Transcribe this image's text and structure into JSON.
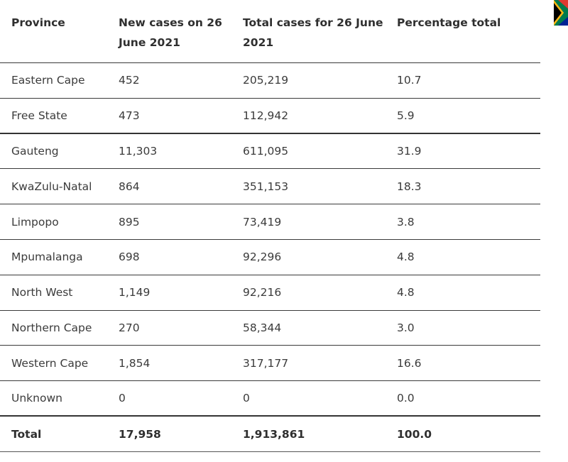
{
  "table": {
    "headers": [
      "Province",
      "New cases on 26 June 2021",
      "Total cases for 26 June 2021",
      "Percentage total"
    ],
    "rows": [
      [
        "Eastern Cape",
        "452",
        "205,219",
        "10.7"
      ],
      [
        "Free State",
        "473",
        "112,942",
        "5.9"
      ],
      [
        "Gauteng",
        "11,303",
        "611,095",
        "31.9"
      ],
      [
        "KwaZulu-Natal",
        "864",
        "351,153",
        "18.3"
      ],
      [
        "Limpopo",
        "895",
        "73,419",
        "3.8"
      ],
      [
        "Mpumalanga",
        "698",
        "92,296",
        "4.8"
      ],
      [
        "North West",
        "1,149",
        "92,216",
        "4.8"
      ],
      [
        "Northern Cape",
        "270",
        "58,344",
        "3.0"
      ],
      [
        "Western Cape",
        "1,854",
        "317,177",
        "16.6"
      ],
      [
        "Unknown",
        "0",
        "0",
        "0.0"
      ]
    ],
    "total": [
      "Total",
      "17,958",
      "1,913,861",
      "100.0"
    ]
  },
  "colors": {
    "text": "#3b3b3b",
    "rule": "#3a3a3a",
    "flag_black": "#000000",
    "flag_green": "#007a4d",
    "flag_yellow": "#ffb612"
  },
  "icons": {
    "corner": "south-africa-flag-icon"
  }
}
